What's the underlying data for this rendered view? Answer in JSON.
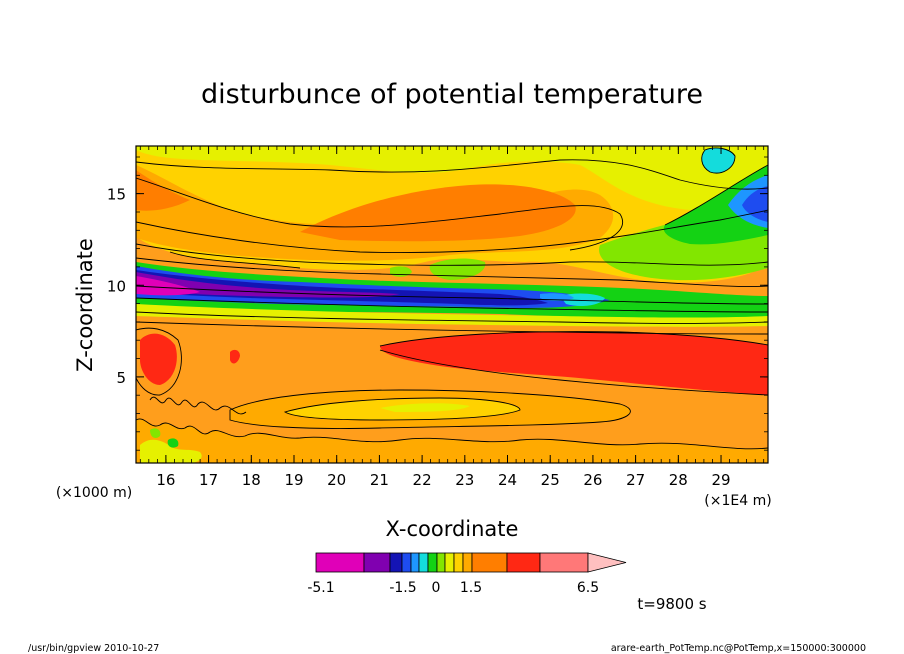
{
  "chart_data": {
    "type": "heatmap",
    "title": "disturbunce of potential temperature",
    "xlabel": "X-coordinate",
    "ylabel": "Z-coordinate",
    "x_unit_left": "(×1000 m)",
    "x_unit_right": "(×1E4 m)",
    "xlim": [
      15.3,
      30.1
    ],
    "ylim": [
      0.3,
      17.6
    ],
    "x_ticks": [
      16,
      17,
      18,
      19,
      20,
      21,
      22,
      23,
      24,
      25,
      26,
      27,
      28,
      29
    ],
    "y_ticks": [
      5,
      10,
      15
    ],
    "time_label": "t=9800 s",
    "colorbar": {
      "colors": [
        "#e000b8",
        "#8000b0",
        "#1414b4",
        "#1e4cf0",
        "#1e96ff",
        "#14dcdc",
        "#14d214",
        "#82e600",
        "#e6f000",
        "#ffd200",
        "#ffaa00",
        "#ff7e00",
        "#ff2814",
        "#ff7878",
        "#ffc0c0"
      ],
      "tick_labels": [
        "-5.1",
        "-1.5",
        "0",
        "1.5",
        "6.5"
      ]
    },
    "footer_left": "/usr/bin/gpview   2010-10-27",
    "footer_right": "arare-earth_PotTemp.nc@PotTemp,x=150000:300000"
  },
  "colors": {
    "bg": "#ff9e1c",
    "orange_deep": "#ff7e00",
    "orange_light": "#ffaa00",
    "gold": "#ffd200",
    "yellow": "#e6f000",
    "light_green": "#82e600",
    "green": "#14d214",
    "cyan": "#14dcdc",
    "sky": "#1e96ff",
    "blue": "#1e4cf0",
    "navy": "#1414b4",
    "purple": "#8000b0",
    "magenta": "#e000b8",
    "red": "#ff2814"
  }
}
